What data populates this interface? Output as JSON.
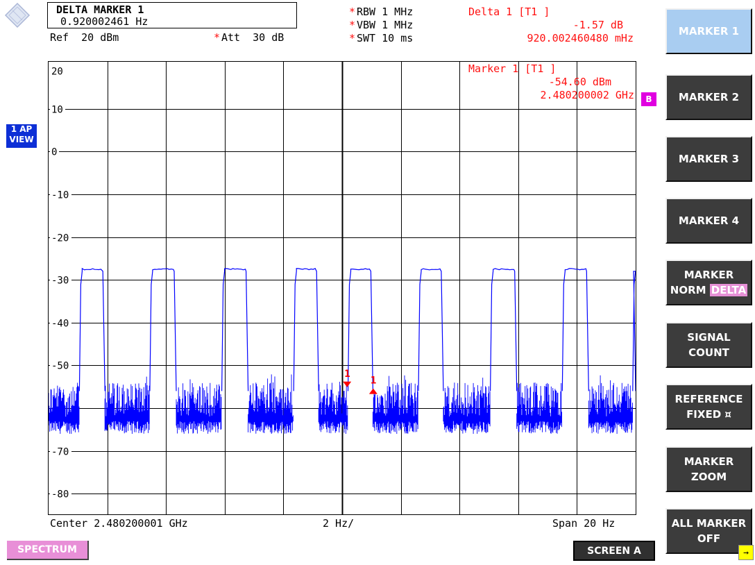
{
  "marker_box": {
    "title": "DELTA MARKER 1",
    "value": "0.920002461 Hz"
  },
  "ref_level": "Ref  20 dBm",
  "att": "Att  30 dB",
  "settings": {
    "rbw": "RBW 1 MHz",
    "vbw": "VBW 1 MHz",
    "swt": "SWT 10 ms",
    "star": "*"
  },
  "delta_readout": {
    "label": "Delta 1 [T1 ]",
    "level": "-1.57 dB",
    "freq": "920.002460480 mHz"
  },
  "marker1_readout": {
    "label": "Marker 1 [T1 ]",
    "level": "-54.60 dBm",
    "freq": "2.480200002 GHz"
  },
  "trace_badge": "B",
  "ap_view": [
    "1 AP",
    "VIEW"
  ],
  "bottom": {
    "center": "Center 2.480200001 GHz",
    "div": "2 Hz/",
    "span": "Span 20 Hz"
  },
  "softkeys": [
    {
      "lines": [
        "MARKER 1"
      ],
      "active": true
    },
    {
      "lines": [
        "MARKER 2"
      ]
    },
    {
      "lines": [
        "MARKER 3"
      ]
    },
    {
      "lines": [
        "MARKER 4"
      ]
    },
    {
      "lines": [
        "MARKER",
        "NORM DELTA"
      ],
      "highlight": "DELTA"
    },
    {
      "lines": [
        "SIGNAL",
        "COUNT"
      ]
    },
    {
      "lines": [
        "REFERENCE",
        "FIXED ¤"
      ]
    },
    {
      "lines": [
        "MARKER",
        "ZOOM"
      ]
    },
    {
      "lines": [
        "ALL MARKER",
        "OFF"
      ]
    }
  ],
  "spectrum_button": "SPECTRUM",
  "screen_button": "SCREEN A",
  "more_arrow": "→",
  "colors": {
    "trace": "#0000ff",
    "marker": "#ff0000",
    "grid": "#000000",
    "softkey": "#3c3c3c",
    "active_softkey": "#a9cdf1"
  },
  "chart_data": {
    "type": "line",
    "yticks": [
      20,
      10,
      0,
      -10,
      -20,
      -30,
      -40,
      -50,
      -60,
      -70,
      -80
    ],
    "ytick_labels": [
      "20",
      "10",
      "0",
      "-10",
      "-20",
      "-30",
      "-40",
      "-50",
      "",
      "-70",
      "-80"
    ],
    "ylim": [
      -84,
      20
    ],
    "xlim": [
      0,
      20
    ],
    "grid": true,
    "pulses": [
      {
        "start": 0.0,
        "rise": 1.05,
        "fall": 1.9,
        "end": 3.5
      },
      {
        "start": 3.5,
        "rise": 3.5,
        "fall": 3.3,
        "end": 3.5
      }
    ],
    "trace": {
      "high_level": -27.5,
      "low_band": [
        -66,
        -54
      ],
      "segments": [
        {
          "on": [
            1.05,
            1.92
          ]
        },
        {
          "on": [
            3.45,
            4.35
          ]
        },
        {
          "on": [
            5.9,
            6.8
          ]
        },
        {
          "on": [
            8.35,
            9.2
          ]
        },
        {
          "on": [
            10.2,
            11.05
          ]
        },
        {
          "on": [
            12.6,
            13.45
          ]
        },
        {
          "on": [
            15.05,
            15.95
          ]
        },
        {
          "on": [
            17.5,
            18.4
          ]
        },
        {
          "on": [
            19.9,
            20.0
          ]
        }
      ]
    },
    "markers": [
      {
        "label": "1",
        "x": 10.17,
        "y": -54.6,
        "kind": "marker"
      },
      {
        "label": "1",
        "x": 11.06,
        "y": -56.2,
        "kind": "delta"
      }
    ]
  }
}
